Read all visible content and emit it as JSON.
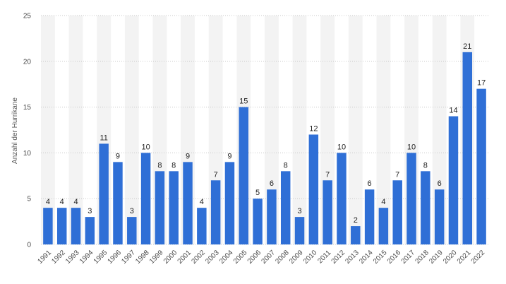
{
  "colors": {
    "bar": "#2f6fd6",
    "band": "#f3f3f3",
    "grid": "#c8c8c8"
  },
  "chart_data": {
    "type": "bar",
    "ylabel": "Anzahl der Hurrikane",
    "xlabel": "",
    "ylim": [
      0,
      25
    ],
    "yticks": [
      0,
      5,
      10,
      15,
      20,
      25
    ],
    "categories": [
      "1991",
      "1992",
      "1993",
      "1994",
      "1995",
      "1996",
      "1997",
      "1998",
      "1999",
      "2000",
      "2001",
      "2002",
      "2003",
      "2004",
      "2005",
      "2006",
      "2007",
      "2008",
      "2009",
      "2010",
      "2011",
      "2012",
      "2013",
      "2014",
      "2015",
      "2016",
      "2017",
      "2018",
      "2019",
      "2020",
      "2021",
      "2022"
    ],
    "values": [
      4,
      4,
      4,
      3,
      11,
      9,
      3,
      10,
      8,
      8,
      9,
      4,
      7,
      9,
      15,
      5,
      6,
      8,
      3,
      12,
      7,
      10,
      2,
      6,
      4,
      7,
      10,
      8,
      6,
      14,
      21,
      17
    ]
  }
}
